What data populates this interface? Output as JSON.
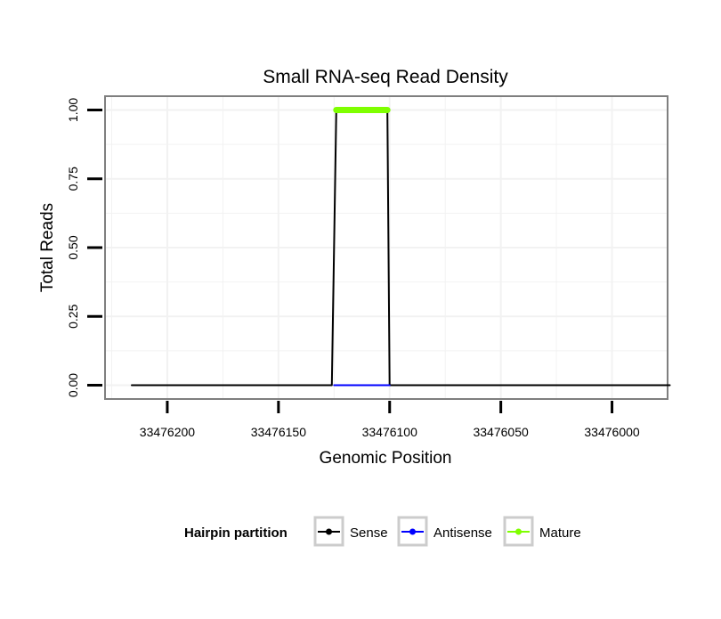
{
  "chart_data": {
    "type": "line",
    "title": "Small RNA-seq Read Density",
    "xlabel": "Genomic Position",
    "ylabel": "Total Reads",
    "x_reversed": true,
    "xlim": [
      33476228,
      33475975
    ],
    "ylim": [
      -0.05,
      1.05
    ],
    "x_ticks": [
      33476200,
      33476150,
      33476100,
      33476050,
      33476000
    ],
    "x_tick_labels": [
      "33476200",
      "33476150",
      "33476100",
      "33476050",
      "33476000"
    ],
    "y_ticks": [
      0,
      0.25,
      0.5,
      0.75,
      1
    ],
    "y_tick_labels": [
      "0.00",
      "0.25",
      "0.50",
      "0.75",
      "1.00"
    ],
    "grid": true,
    "legend_position": "bottom",
    "legend_title": "Hairpin partition",
    "series": [
      {
        "name": "Sense",
        "color": "#000000",
        "points": [
          [
            33476216,
            0
          ],
          [
            33476126,
            0
          ],
          [
            33476124,
            1
          ],
          [
            33476101,
            1
          ],
          [
            33476100,
            0
          ],
          [
            33475974,
            0
          ]
        ]
      },
      {
        "name": "Antisense",
        "color": "#0000ff",
        "points": [
          [
            33476125,
            0
          ],
          [
            33476100,
            0
          ]
        ]
      },
      {
        "name": "Mature",
        "color": "#7fff00",
        "points": [
          [
            33476124,
            1
          ],
          [
            33476101,
            1
          ]
        ]
      }
    ]
  }
}
